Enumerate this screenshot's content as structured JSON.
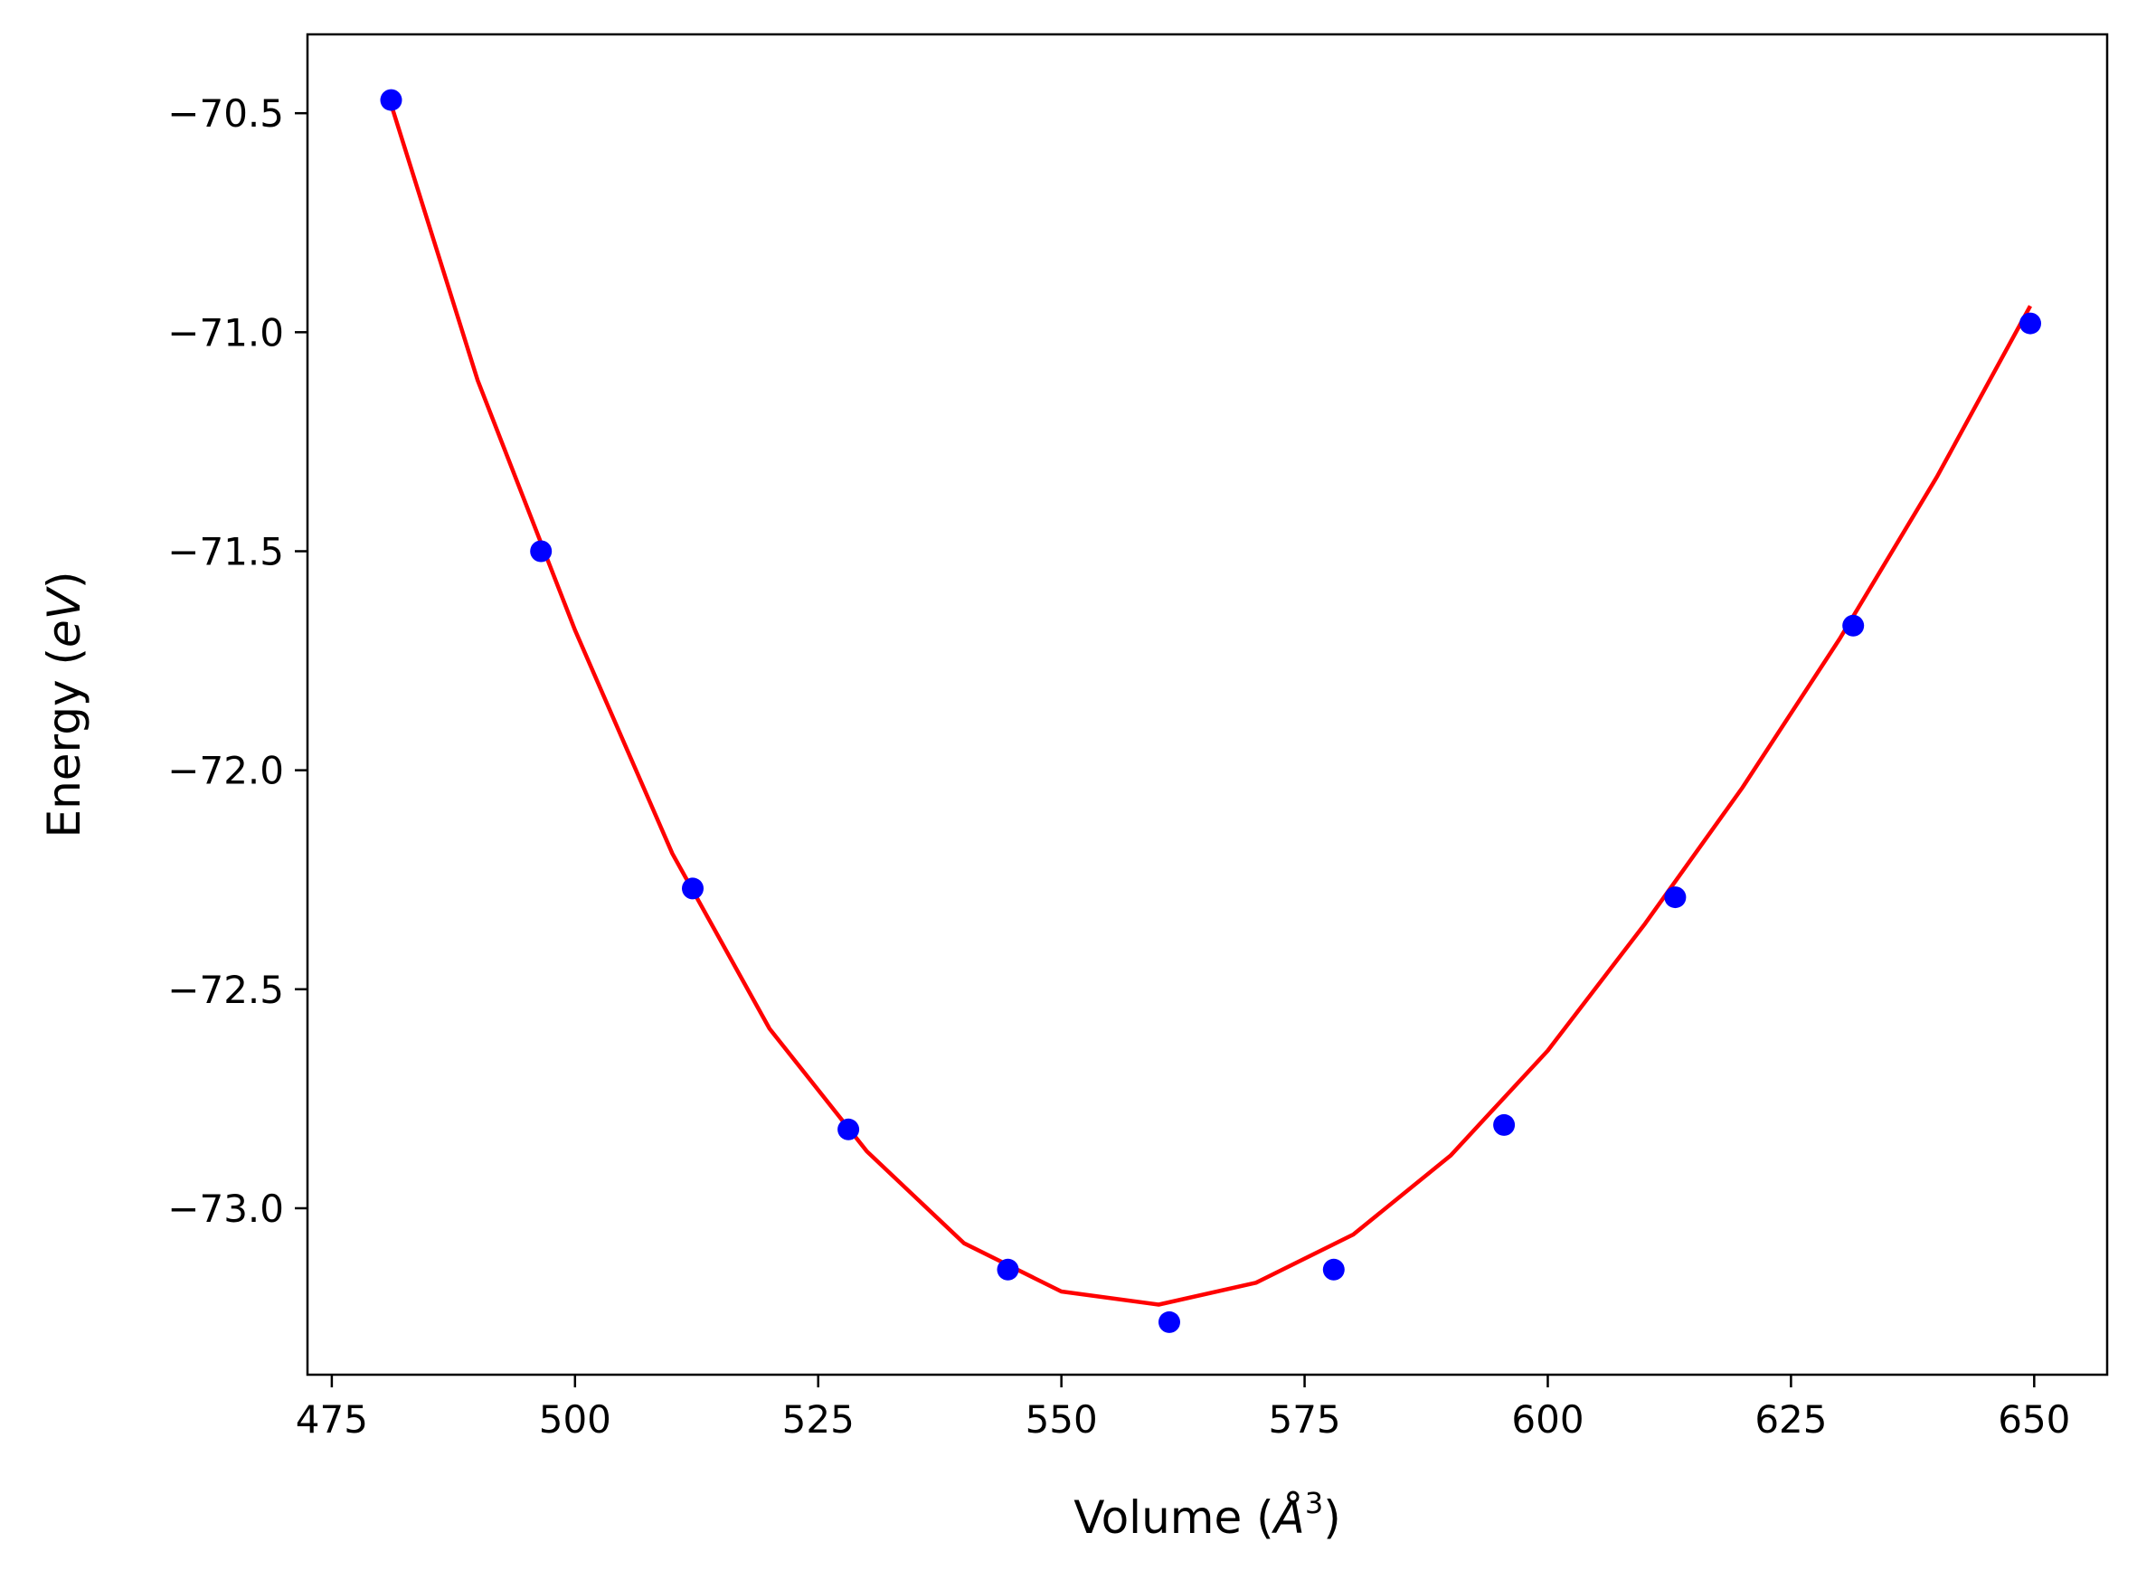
{
  "chart_data": {
    "type": "scatter",
    "title": "",
    "xlabel": {
      "base": "Volume (",
      "italic": "Å",
      "sup": "3",
      "tail": ")"
    },
    "ylabel": {
      "base": "Energy (",
      "italic": "eV",
      "tail": ")"
    },
    "xlim": [
      472.5,
      657.5
    ],
    "ylim": [
      -73.38,
      -70.32
    ],
    "xticks": [
      475,
      500,
      525,
      550,
      575,
      600,
      625,
      650
    ],
    "xtick_labels": [
      "475",
      "500",
      "525",
      "550",
      "575",
      "600",
      "625",
      "650"
    ],
    "yticks": [
      -70.5,
      -71.0,
      -71.5,
      -72.0,
      -72.5,
      -73.0
    ],
    "ytick_labels": [
      "−70.5",
      "−71.0",
      "−71.5",
      "−72.0",
      "−72.5",
      "−73.0"
    ],
    "grid": false,
    "series": [
      {
        "kind": "points",
        "color": "#0000ff",
        "x": [
          481.1,
          496.5,
          512.1,
          528.1,
          544.5,
          561.1,
          578.0,
          595.5,
          613.1,
          631.4,
          649.6
        ],
        "y": [
          -70.47,
          -71.5,
          -72.27,
          -72.82,
          -73.14,
          -73.26,
          -73.14,
          -72.81,
          -72.29,
          -71.67,
          -70.98
        ]
      },
      {
        "kind": "fit-line",
        "color": "#ff0000",
        "x": [
          481.1,
          490,
          500,
          510,
          520,
          530,
          540,
          550,
          560,
          570,
          580,
          590,
          600,
          610,
          620,
          630,
          640,
          649.6
        ],
        "y": [
          -70.48,
          -71.11,
          -71.68,
          -72.19,
          -72.59,
          -72.87,
          -73.08,
          -73.19,
          -73.22,
          -73.17,
          -73.06,
          -72.88,
          -72.64,
          -72.35,
          -72.04,
          -71.7,
          -71.33,
          -70.94
        ]
      }
    ]
  }
}
